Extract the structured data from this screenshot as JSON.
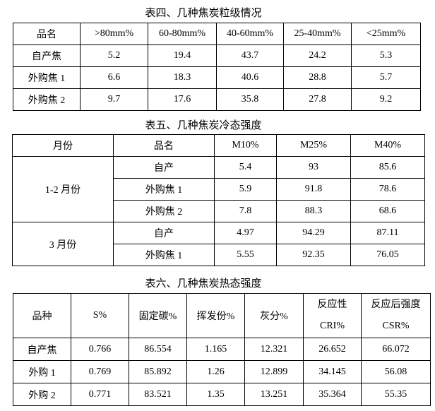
{
  "table4": {
    "title": "表四、几种焦炭粒级情况",
    "headers": [
      "品名",
      ">80mm%",
      "60-80mm%",
      "40-60mm%",
      "25-40mm%",
      "<25mm%"
    ],
    "rows": [
      [
        "自产焦",
        "5.2",
        "19.4",
        "43.7",
        "24.2",
        "5.3"
      ],
      [
        "外购焦 1",
        "6.6",
        "18.3",
        "40.6",
        "28.8",
        "5.7"
      ],
      [
        "外购焦 2",
        "9.7",
        "17.6",
        "35.8",
        "27.8",
        "9.2"
      ]
    ]
  },
  "table5": {
    "title": "表五、几种焦炭冷态强度",
    "headers": [
      "月份",
      "品名",
      "M10%",
      "M25%",
      "M40%"
    ],
    "groups": [
      {
        "month": "1-2 月份",
        "rows": [
          [
            "自产",
            "5.4",
            "93",
            "85.6"
          ],
          [
            "外购焦 1",
            "5.9",
            "91.8",
            "78.6"
          ],
          [
            "外购焦 2",
            "7.8",
            "88.3",
            "68.6"
          ]
        ]
      },
      {
        "month": "3 月份",
        "rows": [
          [
            "自产",
            "4.97",
            "94.29",
            "87.11"
          ],
          [
            "外购焦 1",
            "5.55",
            "92.35",
            "76.05"
          ]
        ]
      }
    ]
  },
  "table6": {
    "title": "表六、几种焦炭热态强度",
    "headers": [
      "品种",
      "S%",
      "固定碳%",
      "挥发份%",
      "灰分%",
      "反应性",
      "反应后强度"
    ],
    "headers_sub": {
      "5": "CRI%",
      "6": "CSR%"
    },
    "rows": [
      [
        "自产焦",
        "0.766",
        "86.554",
        "1.165",
        "12.321",
        "26.652",
        "66.072"
      ],
      [
        "外购 1",
        "0.769",
        "85.892",
        "1.26",
        "12.899",
        "34.145",
        "56.08"
      ],
      [
        "外购 2",
        "0.771",
        "83.521",
        "1.35",
        "13.251",
        "35.364",
        "55.35"
      ]
    ]
  }
}
